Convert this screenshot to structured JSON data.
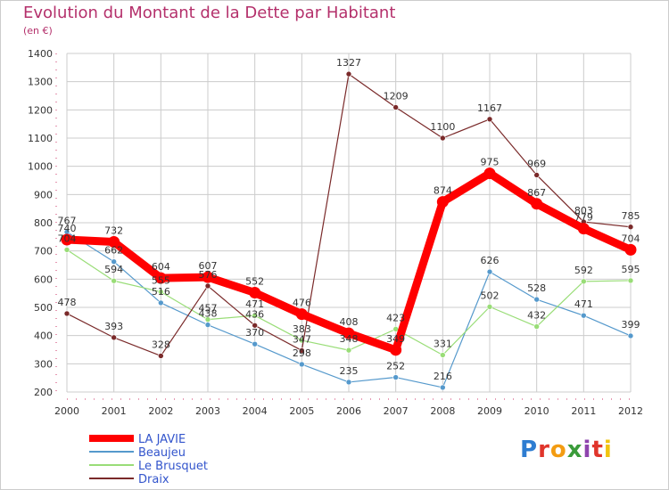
{
  "title": "Evolution du Montant de la Dette par Habitant",
  "subtitle": "(en €)",
  "logo": "Proxiti",
  "colors": {
    "title": "#b4306b",
    "grid": "#cccccc",
    "axis": "#999999",
    "tick_mark": "#cc3366"
  },
  "chart_data": {
    "type": "line",
    "x": [
      2000,
      2001,
      2002,
      2003,
      2004,
      2005,
      2006,
      2007,
      2008,
      2009,
      2010,
      2011,
      2012
    ],
    "ylim": [
      200,
      1400
    ],
    "yticks": [
      200,
      300,
      400,
      500,
      600,
      700,
      800,
      900,
      1000,
      1100,
      1200,
      1300,
      1400
    ],
    "grid": true,
    "legend_position": "bottom-left",
    "series": [
      {
        "name": "LA JAVIE",
        "color": "#ff0000",
        "values": [
          740,
          732,
          604,
          607,
          552,
          476,
          408,
          349,
          874,
          975,
          867,
          779,
          704
        ],
        "labels": [
          "740",
          "732",
          "604",
          "607",
          "552",
          "476",
          "408",
          "349",
          "874",
          "975",
          "867",
          "779",
          "704"
        ],
        "emphasis": true
      },
      {
        "name": "Beaujeu",
        "color": "#5599cc",
        "values": [
          767,
          662,
          516,
          438,
          370,
          298,
          235,
          252,
          216,
          626,
          528,
          471,
          399
        ],
        "labels": [
          "767",
          "662",
          "516",
          "438",
          "370",
          "298",
          "235",
          "252",
          "216",
          "626",
          "528",
          "471",
          "399"
        ],
        "emphasis": false
      },
      {
        "name": "Le Brusquet",
        "color": "#99dd77",
        "values": [
          704,
          594,
          555,
          457,
          471,
          383,
          348,
          423,
          331,
          502,
          432,
          592,
          595
        ],
        "labels": [
          "704",
          "594",
          "555",
          "457",
          "471",
          "383",
          "348",
          "423",
          "331",
          "502",
          "432",
          "592",
          "595"
        ],
        "emphasis": false
      },
      {
        "name": "Draix",
        "color": "#7a2a2a",
        "values": [
          478,
          393,
          328,
          576,
          436,
          347,
          1327,
          1209,
          1100,
          1167,
          969,
          803,
          785
        ],
        "labels": [
          "478",
          "393",
          "328",
          "576",
          "436",
          "347",
          "1327",
          "1209",
          "1100",
          "1167",
          "969",
          "803",
          "785"
        ],
        "emphasis": false
      }
    ]
  }
}
